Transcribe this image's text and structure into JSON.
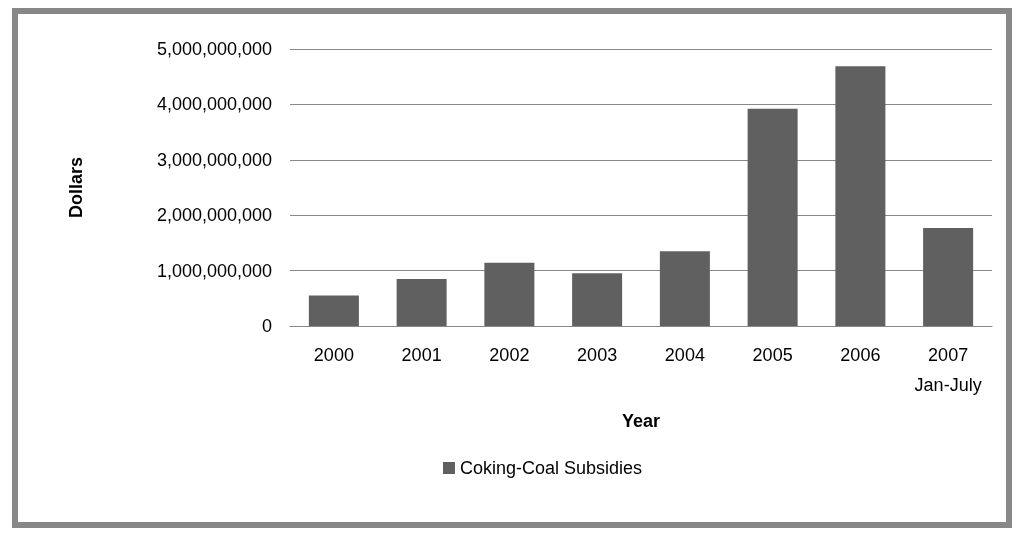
{
  "chart_data": {
    "type": "bar",
    "xlabel": "Year",
    "ylabel": "Dollars",
    "categories": [
      "2000",
      "2001",
      "2002",
      "2003",
      "2004",
      "2005",
      "2006",
      "2007\nJan-July"
    ],
    "series": [
      {
        "name": "Coking-Coal Subsidies",
        "color": "#606060",
        "values": [
          550000000,
          850000000,
          1140000000,
          950000000,
          1350000000,
          3920000000,
          4690000000,
          1770000000
        ]
      }
    ],
    "ylim": [
      0,
      5000000000
    ],
    "yticks": [
      0,
      {
        "value": 1000000000,
        "label": "1,000,000,000"
      },
      {
        "value": 2000000000,
        "label": "2,000,000,000"
      },
      {
        "value": 3000000000,
        "label": "3,000,000,000"
      },
      {
        "value": 4000000000,
        "label": "4,000,000,000"
      },
      {
        "value": 5000000000,
        "label": "5,000,000,000"
      }
    ],
    "grid": "y",
    "legend": "bottom"
  }
}
